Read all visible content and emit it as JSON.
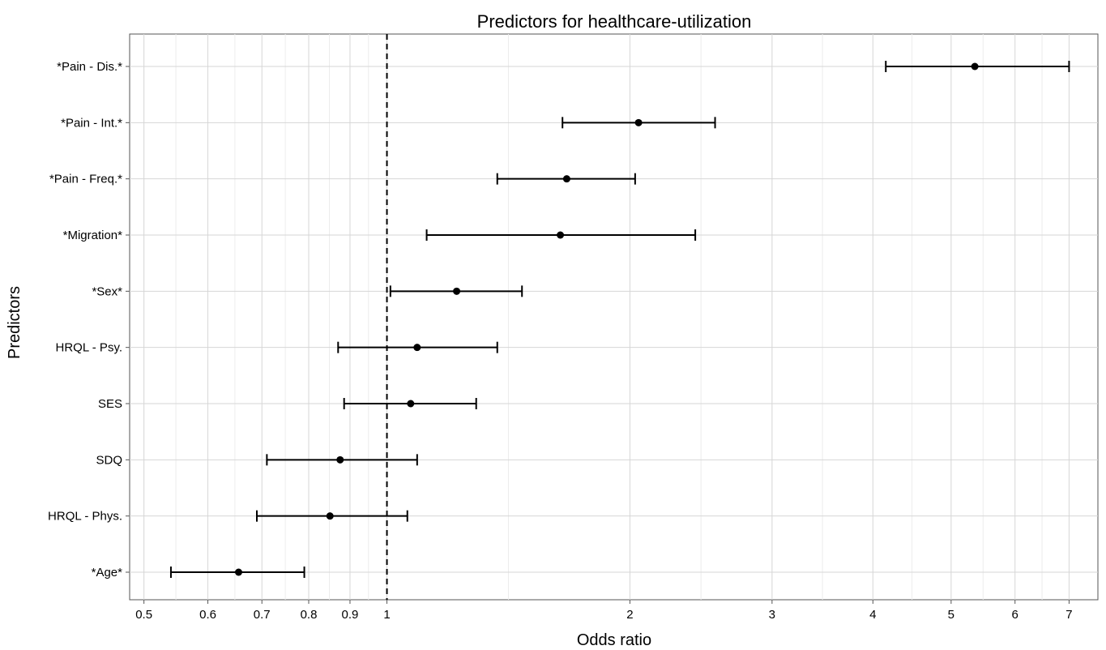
{
  "chart_data": {
    "type": "forest",
    "title": "Predictors for healthcare-utilization",
    "xlabel": "Odds ratio",
    "ylabel": "Predictors",
    "x_scale": "log",
    "xlim": [
      0.48,
      7.6
    ],
    "x_ticks": [
      0.5,
      0.6,
      0.7,
      0.8,
      0.9,
      1,
      2,
      3,
      4,
      5,
      6,
      7
    ],
    "x_tick_labels": [
      "0.5",
      "0.6",
      "0.7",
      "0.8",
      "0.9",
      "1",
      "2",
      "3",
      "4",
      "5",
      "6",
      "7"
    ],
    "reference_line": 1,
    "grid": true,
    "rows": [
      {
        "label": "*Pain - Dis.*",
        "or": 5.35,
        "lower": 4.15,
        "upper": 7.0
      },
      {
        "label": "*Pain - Int.*",
        "or": 2.05,
        "lower": 1.65,
        "upper": 2.55
      },
      {
        "label": "*Pain - Freq.*",
        "or": 1.67,
        "lower": 1.37,
        "upper": 2.03
      },
      {
        "label": "*Migration*",
        "or": 1.64,
        "lower": 1.12,
        "upper": 2.41
      },
      {
        "label": "*Sex*",
        "or": 1.22,
        "lower": 1.01,
        "upper": 1.47
      },
      {
        "label": "HRQL - Psy.",
        "or": 1.09,
        "lower": 0.87,
        "upper": 1.37
      },
      {
        "label": "SES",
        "or": 1.07,
        "lower": 0.885,
        "upper": 1.29
      },
      {
        "label": "SDQ",
        "or": 0.875,
        "lower": 0.71,
        "upper": 1.09
      },
      {
        "label": "HRQL - Phys.",
        "or": 0.85,
        "lower": 0.69,
        "upper": 1.06
      },
      {
        "label": "*Age*",
        "or": 0.655,
        "lower": 0.54,
        "upper": 0.79
      }
    ]
  }
}
